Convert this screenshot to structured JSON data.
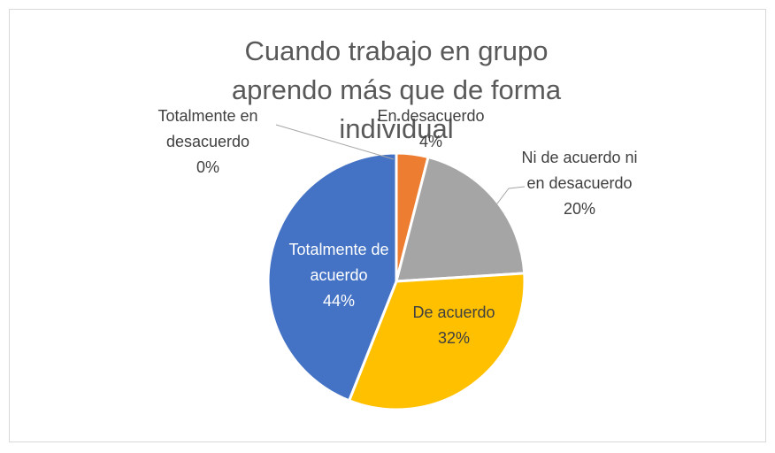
{
  "chart_data": {
    "type": "pie",
    "title": "Cuando trabajo en grupo aprendo más que de forma individual",
    "categories": [
      "Totalmente en desacuerdo",
      "En desacuerdo",
      "Ni de acuerdo ni en desacuerdo",
      "De acuerdo",
      "Totalmente de acuerdo"
    ],
    "values": [
      0,
      4,
      20,
      32,
      44
    ],
    "value_labels": [
      "0%",
      "4%",
      "20%",
      "32%",
      "44%"
    ],
    "colors": [
      "#5b9bd5",
      "#ed7d31",
      "#a5a5a5",
      "#ffc000",
      "#4472c4"
    ]
  }
}
